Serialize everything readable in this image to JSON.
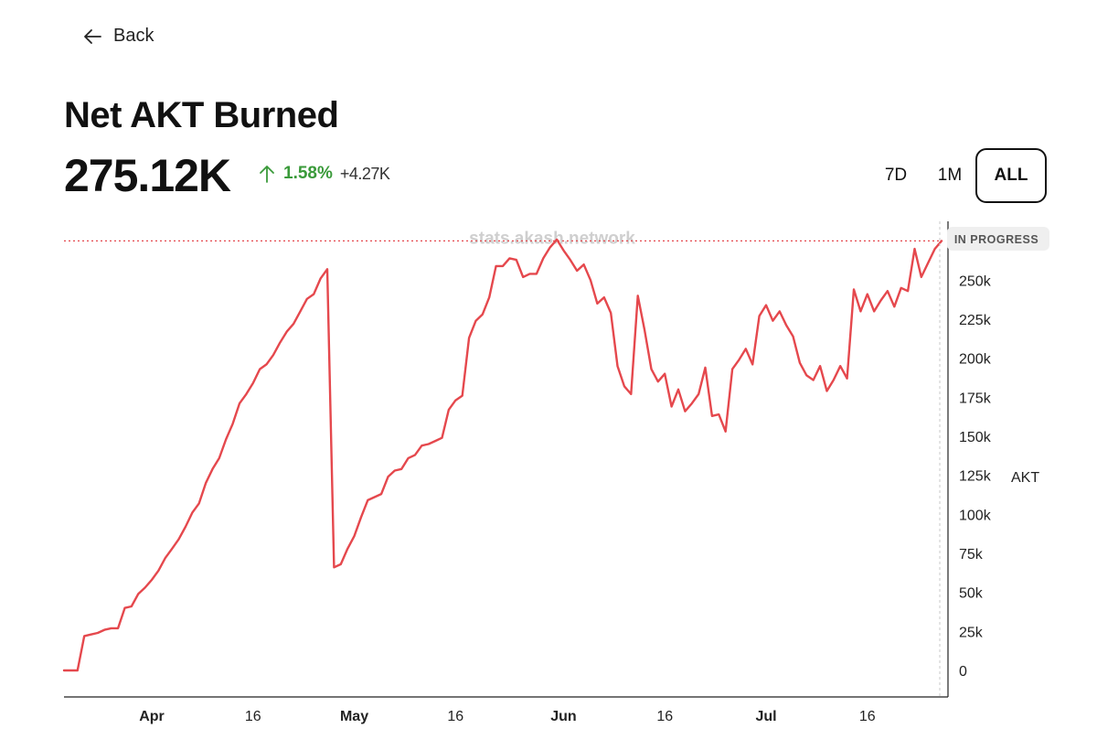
{
  "nav": {
    "back_label": "Back"
  },
  "header": {
    "title": "Net AKT Burned",
    "value": "275.12K",
    "change_pct": "1.58%",
    "change_abs": "+4.27K"
  },
  "ranges": {
    "r7d": "7D",
    "r1m": "1M",
    "all": "ALL",
    "selected": "ALL"
  },
  "colors": {
    "line": "#e5484d",
    "up": "#3a9a3a"
  },
  "chart_data": {
    "type": "line",
    "watermark": "stats.akash.network",
    "status_label": "IN PROGRESS",
    "ylabel": "AKT",
    "ylim": [
      0,
      290000
    ],
    "yticks": [
      {
        "v": 0,
        "label": "0"
      },
      {
        "v": 25000,
        "label": "25k"
      },
      {
        "v": 50000,
        "label": "50k"
      },
      {
        "v": 75000,
        "label": "75k"
      },
      {
        "v": 100000,
        "label": "100k"
      },
      {
        "v": 125000,
        "label": "125k"
      },
      {
        "v": 150000,
        "label": "150k"
      },
      {
        "v": 175000,
        "label": "175k"
      },
      {
        "v": 200000,
        "label": "200k"
      },
      {
        "v": 225000,
        "label": "225k"
      },
      {
        "v": 250000,
        "label": "250k"
      }
    ],
    "xrange": [
      "2023-03-19",
      "2023-07-27"
    ],
    "xticks": [
      {
        "date": "2023-04-01",
        "label": "Apr",
        "month": true
      },
      {
        "date": "2023-04-16",
        "label": "16",
        "month": false
      },
      {
        "date": "2023-05-01",
        "label": "May",
        "month": true
      },
      {
        "date": "2023-05-16",
        "label": "16",
        "month": false
      },
      {
        "date": "2023-06-01",
        "label": "Jun",
        "month": true
      },
      {
        "date": "2023-06-16",
        "label": "16",
        "month": false
      },
      {
        "date": "2023-07-01",
        "label": "Jul",
        "month": true
      },
      {
        "date": "2023-07-16",
        "label": "16",
        "month": false
      }
    ],
    "reference_value": 275120,
    "series": [
      {
        "values": [
          [
            "2023-03-19",
            0
          ],
          [
            "2023-03-20",
            0
          ],
          [
            "2023-03-21",
            0
          ],
          [
            "2023-03-22",
            22000
          ],
          [
            "2023-03-23",
            23000
          ],
          [
            "2023-03-24",
            24000
          ],
          [
            "2023-03-25",
            26000
          ],
          [
            "2023-03-26",
            27000
          ],
          [
            "2023-03-27",
            27000
          ],
          [
            "2023-03-28",
            40000
          ],
          [
            "2023-03-29",
            41000
          ],
          [
            "2023-03-30",
            49000
          ],
          [
            "2023-03-31",
            53000
          ],
          [
            "2023-04-01",
            58000
          ],
          [
            "2023-04-02",
            64000
          ],
          [
            "2023-04-03",
            72000
          ],
          [
            "2023-04-04",
            78000
          ],
          [
            "2023-04-05",
            84000
          ],
          [
            "2023-04-06",
            92000
          ],
          [
            "2023-04-07",
            101000
          ],
          [
            "2023-04-08",
            107000
          ],
          [
            "2023-04-09",
            120000
          ],
          [
            "2023-04-10",
            129000
          ],
          [
            "2023-04-11",
            136000
          ],
          [
            "2023-04-12",
            148000
          ],
          [
            "2023-04-13",
            158000
          ],
          [
            "2023-04-14",
            171000
          ],
          [
            "2023-04-15",
            177000
          ],
          [
            "2023-04-16",
            184000
          ],
          [
            "2023-04-17",
            193000
          ],
          [
            "2023-04-18",
            196000
          ],
          [
            "2023-04-19",
            202000
          ],
          [
            "2023-04-20",
            210000
          ],
          [
            "2023-04-21",
            217000
          ],
          [
            "2023-04-22",
            222000
          ],
          [
            "2023-04-23",
            230000
          ],
          [
            "2023-04-24",
            238000
          ],
          [
            "2023-04-25",
            241000
          ],
          [
            "2023-04-26",
            251000
          ],
          [
            "2023-04-27",
            257000
          ],
          [
            "2023-04-28",
            66000
          ],
          [
            "2023-04-29",
            68000
          ],
          [
            "2023-04-30",
            78000
          ],
          [
            "2023-05-01",
            86000
          ],
          [
            "2023-05-02",
            98000
          ],
          [
            "2023-05-03",
            109000
          ],
          [
            "2023-05-04",
            111000
          ],
          [
            "2023-05-05",
            113000
          ],
          [
            "2023-05-06",
            124000
          ],
          [
            "2023-05-07",
            128000
          ],
          [
            "2023-05-08",
            129000
          ],
          [
            "2023-05-09",
            136000
          ],
          [
            "2023-05-10",
            138000
          ],
          [
            "2023-05-11",
            144000
          ],
          [
            "2023-05-12",
            145000
          ],
          [
            "2023-05-13",
            147000
          ],
          [
            "2023-05-14",
            149000
          ],
          [
            "2023-05-15",
            167000
          ],
          [
            "2023-05-16",
            173000
          ],
          [
            "2023-05-17",
            176000
          ],
          [
            "2023-05-18",
            213000
          ],
          [
            "2023-05-19",
            224000
          ],
          [
            "2023-05-20",
            228000
          ],
          [
            "2023-05-21",
            239000
          ],
          [
            "2023-05-22",
            259000
          ],
          [
            "2023-05-23",
            259000
          ],
          [
            "2023-05-24",
            264000
          ],
          [
            "2023-05-25",
            263000
          ],
          [
            "2023-05-26",
            252000
          ],
          [
            "2023-05-27",
            254000
          ],
          [
            "2023-05-28",
            254000
          ],
          [
            "2023-05-29",
            264000
          ],
          [
            "2023-05-30",
            271000
          ],
          [
            "2023-05-31",
            276000
          ],
          [
            "2023-06-01",
            269000
          ],
          [
            "2023-06-02",
            263000
          ],
          [
            "2023-06-03",
            256000
          ],
          [
            "2023-06-04",
            260000
          ],
          [
            "2023-06-05",
            250000
          ],
          [
            "2023-06-06",
            235000
          ],
          [
            "2023-06-07",
            239000
          ],
          [
            "2023-06-08",
            229000
          ],
          [
            "2023-06-09",
            195000
          ],
          [
            "2023-06-10",
            182000
          ],
          [
            "2023-06-11",
            177000
          ],
          [
            "2023-06-12",
            240000
          ],
          [
            "2023-06-13",
            218000
          ],
          [
            "2023-06-14",
            193000
          ],
          [
            "2023-06-15",
            185000
          ],
          [
            "2023-06-16",
            190000
          ],
          [
            "2023-06-17",
            169000
          ],
          [
            "2023-06-18",
            180000
          ],
          [
            "2023-06-19",
            166000
          ],
          [
            "2023-06-20",
            171000
          ],
          [
            "2023-06-21",
            177000
          ],
          [
            "2023-06-22",
            194000
          ],
          [
            "2023-06-23",
            163000
          ],
          [
            "2023-06-24",
            164000
          ],
          [
            "2023-06-25",
            153000
          ],
          [
            "2023-06-26",
            193000
          ],
          [
            "2023-06-27",
            199000
          ],
          [
            "2023-06-28",
            206000
          ],
          [
            "2023-06-29",
            196000
          ],
          [
            "2023-06-30",
            227000
          ],
          [
            "2023-07-01",
            234000
          ],
          [
            "2023-07-02",
            224000
          ],
          [
            "2023-07-03",
            230000
          ],
          [
            "2023-07-04",
            221000
          ],
          [
            "2023-07-05",
            214000
          ],
          [
            "2023-07-06",
            197000
          ],
          [
            "2023-07-07",
            189000
          ],
          [
            "2023-07-08",
            186000
          ],
          [
            "2023-07-09",
            195000
          ],
          [
            "2023-07-10",
            179000
          ],
          [
            "2023-07-11",
            186000
          ],
          [
            "2023-07-12",
            195000
          ],
          [
            "2023-07-13",
            187000
          ],
          [
            "2023-07-14",
            244000
          ],
          [
            "2023-07-15",
            230000
          ],
          [
            "2023-07-16",
            241000
          ],
          [
            "2023-07-17",
            230000
          ],
          [
            "2023-07-18",
            237000
          ],
          [
            "2023-07-19",
            243000
          ],
          [
            "2023-07-20",
            233000
          ],
          [
            "2023-07-21",
            245000
          ],
          [
            "2023-07-22",
            243000
          ],
          [
            "2023-07-23",
            270000
          ],
          [
            "2023-07-24",
            252000
          ],
          [
            "2023-07-25",
            261000
          ],
          [
            "2023-07-26",
            270000
          ],
          [
            "2023-07-27",
            275120
          ]
        ]
      }
    ]
  }
}
